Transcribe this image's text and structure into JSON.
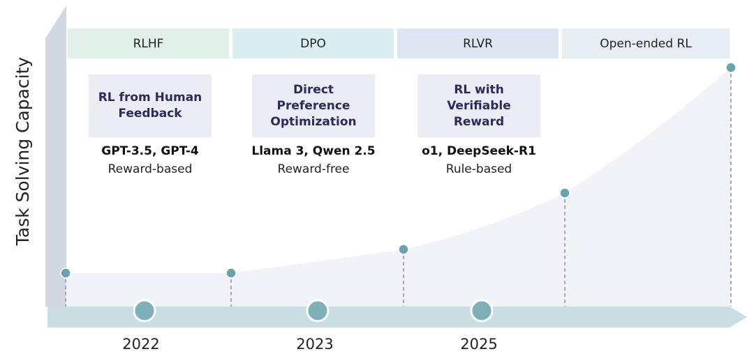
{
  "y_axis_label": "Task Solving Capacity",
  "phases": [
    {
      "label": "RLHF",
      "color": "#e2f0ea"
    },
    {
      "label": "DPO",
      "color": "#daedf1"
    },
    {
      "label": "RLVR",
      "color": "#dde6f2"
    },
    {
      "label": "Open-ended RL",
      "color": "#e7edf3"
    }
  ],
  "methods": [
    {
      "title": "RL from Human Feedback",
      "models": "GPT-3.5, GPT-4",
      "reward": "Reward-based"
    },
    {
      "title": "Direct Preference Optimization",
      "models": "Llama 3, Qwen 2.5",
      "reward": "Reward-free"
    },
    {
      "title": "RL with Verifiable Reward",
      "models": "o1, DeepSeek-R1",
      "reward": "Rule-based"
    }
  ],
  "years": [
    "2022",
    "2023",
    "2025"
  ],
  "colors": {
    "axis": "#c9dde3",
    "y_axis": "#d2d7e0",
    "point": "#6aa3ad",
    "milestone": "#7fafb7",
    "dash": "#8a8fb2",
    "area": "#f1f3f8"
  }
}
